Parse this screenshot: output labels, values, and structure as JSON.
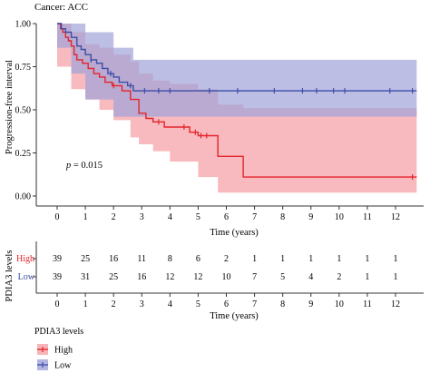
{
  "panel_label": "Cancer: ACC",
  "colors": {
    "high": "#e4242b",
    "low": "#3d4ea6",
    "high_ci": "#f5a3a8",
    "low_ci": "#9fa3d9"
  },
  "chart_data": [
    {
      "type": "line",
      "step": true,
      "censor_marks": true,
      "confidence_bands": true,
      "xlabel": "Time (years)",
      "ylabel": "Progression-free interval",
      "xlim": [
        0,
        12.8
      ],
      "ylim": [
        0,
        1
      ],
      "xticks": [
        "0",
        "1",
        "2",
        "3",
        "4",
        "5",
        "6",
        "7",
        "8",
        "9",
        "10",
        "11",
        "12"
      ],
      "yticks": [
        "0.00",
        "0.25",
        "0.50",
        "0.75",
        "1.00"
      ],
      "annotation": "p = 0.015",
      "grid": false,
      "series": [
        {
          "name": "High",
          "color": "#e4242b",
          "steps": [
            [
              0,
              1.0
            ],
            [
              0.12,
              0.97
            ],
            [
              0.2,
              0.95
            ],
            [
              0.3,
              0.92
            ],
            [
              0.4,
              0.9
            ],
            [
              0.5,
              0.87
            ],
            [
              0.6,
              0.82
            ],
            [
              0.7,
              0.79
            ],
            [
              0.9,
              0.77
            ],
            [
              1.1,
              0.74
            ],
            [
              1.3,
              0.71
            ],
            [
              1.5,
              0.69
            ],
            [
              1.7,
              0.66
            ],
            [
              1.95,
              0.64
            ],
            [
              2.3,
              0.61
            ],
            [
              2.6,
              0.56
            ],
            [
              2.9,
              0.48
            ],
            [
              3.15,
              0.45
            ],
            [
              3.4,
              0.43
            ],
            [
              3.8,
              0.4
            ],
            [
              4.7,
              0.37
            ],
            [
              5.0,
              0.35
            ],
            [
              5.7,
              0.23
            ],
            [
              6.6,
              0.11
            ],
            [
              12.75,
              0.11
            ]
          ],
          "censored": [
            [
              2.0,
              0.64
            ],
            [
              3.6,
              0.43
            ],
            [
              4.5,
              0.4
            ],
            [
              4.9,
              0.37
            ],
            [
              5.1,
              0.35
            ],
            [
              5.3,
              0.35
            ],
            [
              12.6,
              0.11
            ]
          ],
          "ci_upper": [
            [
              0,
              1.0
            ],
            [
              0.5,
              0.95
            ],
            [
              1.0,
              0.88
            ],
            [
              1.5,
              0.86
            ],
            [
              2.0,
              0.82
            ],
            [
              2.6,
              0.78
            ],
            [
              2.9,
              0.71
            ],
            [
              3.4,
              0.67
            ],
            [
              4.0,
              0.65
            ],
            [
              5.0,
              0.62
            ],
            [
              5.7,
              0.53
            ],
            [
              6.6,
              0.51
            ],
            [
              12.75,
              0.51
            ]
          ],
          "ci_lower": [
            [
              0,
              1.0
            ],
            [
              0.5,
              0.75
            ],
            [
              1.0,
              0.62
            ],
            [
              1.5,
              0.56
            ],
            [
              2.0,
              0.5
            ],
            [
              2.6,
              0.44
            ],
            [
              2.9,
              0.34
            ],
            [
              3.4,
              0.3
            ],
            [
              4.0,
              0.26
            ],
            [
              5.0,
              0.2
            ],
            [
              5.7,
              0.11
            ],
            [
              6.6,
              0.02
            ],
            [
              12.75,
              0.02
            ]
          ]
        },
        {
          "name": "Low",
          "color": "#3d4ea6",
          "steps": [
            [
              0,
              1.0
            ],
            [
              0.15,
              0.97
            ],
            [
              0.3,
              0.95
            ],
            [
              0.5,
              0.92
            ],
            [
              0.7,
              0.87
            ],
            [
              0.85,
              0.85
            ],
            [
              1.0,
              0.82
            ],
            [
              1.2,
              0.79
            ],
            [
              1.4,
              0.77
            ],
            [
              1.6,
              0.74
            ],
            [
              1.8,
              0.71
            ],
            [
              2.0,
              0.69
            ],
            [
              2.2,
              0.66
            ],
            [
              2.5,
              0.64
            ],
            [
              2.7,
              0.61
            ],
            [
              12.75,
              0.61
            ]
          ],
          "censored": [
            [
              1.2,
              0.79
            ],
            [
              1.9,
              0.71
            ],
            [
              2.6,
              0.64
            ],
            [
              3.1,
              0.61
            ],
            [
              3.6,
              0.61
            ],
            [
              4.0,
              0.61
            ],
            [
              5.4,
              0.61
            ],
            [
              6.4,
              0.61
            ],
            [
              7.7,
              0.61
            ],
            [
              8.7,
              0.61
            ],
            [
              9.2,
              0.61
            ],
            [
              9.8,
              0.61
            ],
            [
              10.2,
              0.61
            ],
            [
              11.8,
              0.61
            ],
            [
              12.6,
              0.61
            ]
          ],
          "ci_upper": [
            [
              0,
              1.0
            ],
            [
              1.0,
              0.95
            ],
            [
              2.0,
              0.86
            ],
            [
              2.7,
              0.79
            ],
            [
              12.75,
              0.79
            ]
          ],
          "ci_lower": [
            [
              0,
              1.0
            ],
            [
              0.5,
              0.86
            ],
            [
              1.0,
              0.71
            ],
            [
              2.0,
              0.56
            ],
            [
              2.7,
              0.46
            ],
            [
              12.75,
              0.46
            ]
          ]
        }
      ]
    },
    {
      "type": "table",
      "title": "",
      "xlabel": "Time (years)",
      "ylabel": "PDIA3 levels",
      "columns": [
        "0",
        "1",
        "2",
        "3",
        "4",
        "5",
        "6",
        "7",
        "8",
        "9",
        "10",
        "11",
        "12"
      ],
      "rows": [
        {
          "name": "High",
          "color": "#e4242b",
          "values": [
            "39",
            "25",
            "16",
            "11",
            "8",
            "6",
            "2",
            "1",
            "1",
            "1",
            "1",
            "1",
            "1"
          ]
        },
        {
          "name": "Low",
          "color": "#3d4ea6",
          "values": [
            "39",
            "31",
            "25",
            "16",
            "12",
            "12",
            "10",
            "7",
            "5",
            "4",
            "2",
            "1",
            "1"
          ]
        }
      ]
    }
  ],
  "legend": {
    "title": "PDIA3 levels",
    "items": [
      {
        "label": "High",
        "color": "#e4242b"
      },
      {
        "label": "Low",
        "color": "#3d4ea6"
      }
    ]
  }
}
